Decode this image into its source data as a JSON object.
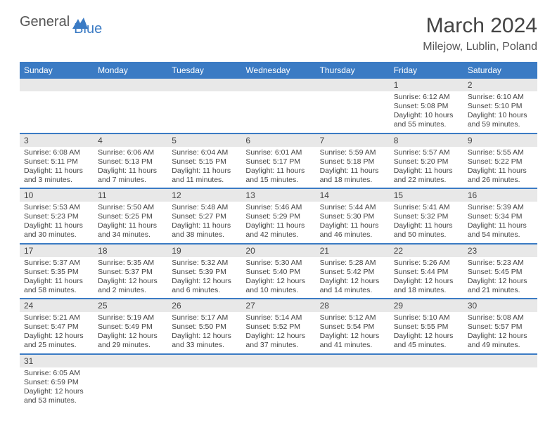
{
  "logo": {
    "textA": "General",
    "textB": "Blue"
  },
  "title": "March 2024",
  "location": "Milejow, Lublin, Poland",
  "header_bg": "#3b7bc4",
  "cell_divider": "#3b7bc4",
  "daynum_bg": "#e8e8e8",
  "text_color": "#444444",
  "days": [
    "Sunday",
    "Monday",
    "Tuesday",
    "Wednesday",
    "Thursday",
    "Friday",
    "Saturday"
  ],
  "weeks": [
    [
      null,
      null,
      null,
      null,
      null,
      {
        "n": "1",
        "sr": "6:12 AM",
        "ss": "5:08 PM",
        "dl": "10 hours and 55 minutes."
      },
      {
        "n": "2",
        "sr": "6:10 AM",
        "ss": "5:10 PM",
        "dl": "10 hours and 59 minutes."
      }
    ],
    [
      {
        "n": "3",
        "sr": "6:08 AM",
        "ss": "5:11 PM",
        "dl": "11 hours and 3 minutes."
      },
      {
        "n": "4",
        "sr": "6:06 AM",
        "ss": "5:13 PM",
        "dl": "11 hours and 7 minutes."
      },
      {
        "n": "5",
        "sr": "6:04 AM",
        "ss": "5:15 PM",
        "dl": "11 hours and 11 minutes."
      },
      {
        "n": "6",
        "sr": "6:01 AM",
        "ss": "5:17 PM",
        "dl": "11 hours and 15 minutes."
      },
      {
        "n": "7",
        "sr": "5:59 AM",
        "ss": "5:18 PM",
        "dl": "11 hours and 18 minutes."
      },
      {
        "n": "8",
        "sr": "5:57 AM",
        "ss": "5:20 PM",
        "dl": "11 hours and 22 minutes."
      },
      {
        "n": "9",
        "sr": "5:55 AM",
        "ss": "5:22 PM",
        "dl": "11 hours and 26 minutes."
      }
    ],
    [
      {
        "n": "10",
        "sr": "5:53 AM",
        "ss": "5:23 PM",
        "dl": "11 hours and 30 minutes."
      },
      {
        "n": "11",
        "sr": "5:50 AM",
        "ss": "5:25 PM",
        "dl": "11 hours and 34 minutes."
      },
      {
        "n": "12",
        "sr": "5:48 AM",
        "ss": "5:27 PM",
        "dl": "11 hours and 38 minutes."
      },
      {
        "n": "13",
        "sr": "5:46 AM",
        "ss": "5:29 PM",
        "dl": "11 hours and 42 minutes."
      },
      {
        "n": "14",
        "sr": "5:44 AM",
        "ss": "5:30 PM",
        "dl": "11 hours and 46 minutes."
      },
      {
        "n": "15",
        "sr": "5:41 AM",
        "ss": "5:32 PM",
        "dl": "11 hours and 50 minutes."
      },
      {
        "n": "16",
        "sr": "5:39 AM",
        "ss": "5:34 PM",
        "dl": "11 hours and 54 minutes."
      }
    ],
    [
      {
        "n": "17",
        "sr": "5:37 AM",
        "ss": "5:35 PM",
        "dl": "11 hours and 58 minutes."
      },
      {
        "n": "18",
        "sr": "5:35 AM",
        "ss": "5:37 PM",
        "dl": "12 hours and 2 minutes."
      },
      {
        "n": "19",
        "sr": "5:32 AM",
        "ss": "5:39 PM",
        "dl": "12 hours and 6 minutes."
      },
      {
        "n": "20",
        "sr": "5:30 AM",
        "ss": "5:40 PM",
        "dl": "12 hours and 10 minutes."
      },
      {
        "n": "21",
        "sr": "5:28 AM",
        "ss": "5:42 PM",
        "dl": "12 hours and 14 minutes."
      },
      {
        "n": "22",
        "sr": "5:26 AM",
        "ss": "5:44 PM",
        "dl": "12 hours and 18 minutes."
      },
      {
        "n": "23",
        "sr": "5:23 AM",
        "ss": "5:45 PM",
        "dl": "12 hours and 21 minutes."
      }
    ],
    [
      {
        "n": "24",
        "sr": "5:21 AM",
        "ss": "5:47 PM",
        "dl": "12 hours and 25 minutes."
      },
      {
        "n": "25",
        "sr": "5:19 AM",
        "ss": "5:49 PM",
        "dl": "12 hours and 29 minutes."
      },
      {
        "n": "26",
        "sr": "5:17 AM",
        "ss": "5:50 PM",
        "dl": "12 hours and 33 minutes."
      },
      {
        "n": "27",
        "sr": "5:14 AM",
        "ss": "5:52 PM",
        "dl": "12 hours and 37 minutes."
      },
      {
        "n": "28",
        "sr": "5:12 AM",
        "ss": "5:54 PM",
        "dl": "12 hours and 41 minutes."
      },
      {
        "n": "29",
        "sr": "5:10 AM",
        "ss": "5:55 PM",
        "dl": "12 hours and 45 minutes."
      },
      {
        "n": "30",
        "sr": "5:08 AM",
        "ss": "5:57 PM",
        "dl": "12 hours and 49 minutes."
      }
    ],
    [
      {
        "n": "31",
        "sr": "6:05 AM",
        "ss": "6:59 PM",
        "dl": "12 hours and 53 minutes."
      },
      null,
      null,
      null,
      null,
      null,
      null
    ]
  ],
  "labels": {
    "sunrise": "Sunrise:",
    "sunset": "Sunset:",
    "daylight": "Daylight:"
  }
}
